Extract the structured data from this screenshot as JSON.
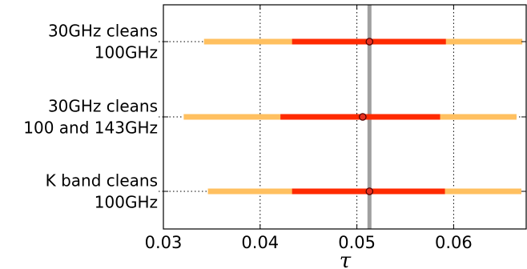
{
  "chart_data": {
    "type": "scatter",
    "xlabel": "τ",
    "xlim": [
      0.03,
      0.0675
    ],
    "xticks": [
      0.03,
      0.04,
      0.05,
      0.06
    ],
    "xtick_labels": [
      "0.03",
      "0.04",
      "0.05",
      "0.06"
    ],
    "grid": true,
    "reference_line": {
      "x": 0.0513,
      "color": "#a0a0a0"
    },
    "rows": [
      {
        "label_lines": [
          "30GHz cleans",
          "100GHz"
        ],
        "point": 0.0513,
        "inner": [
          0.0433,
          0.0592
        ],
        "outer": [
          0.0342,
          0.0671
        ]
      },
      {
        "label_lines": [
          "30GHz cleans",
          "100 and 143GHz"
        ],
        "point": 0.0506,
        "inner": [
          0.0421,
          0.0586
        ],
        "outer": [
          0.0321,
          0.0665
        ]
      },
      {
        "label_lines": [
          "K band cleans",
          "100GHz"
        ],
        "point": 0.0513,
        "inner": [
          0.0433,
          0.0591
        ],
        "outer": [
          0.0346,
          0.067
        ]
      }
    ],
    "colors": {
      "inner": "#ff2a00",
      "outer": "#ffc060",
      "point_fill": "#e83020",
      "point_edge": "#4a0000",
      "grid": "#000000"
    }
  }
}
